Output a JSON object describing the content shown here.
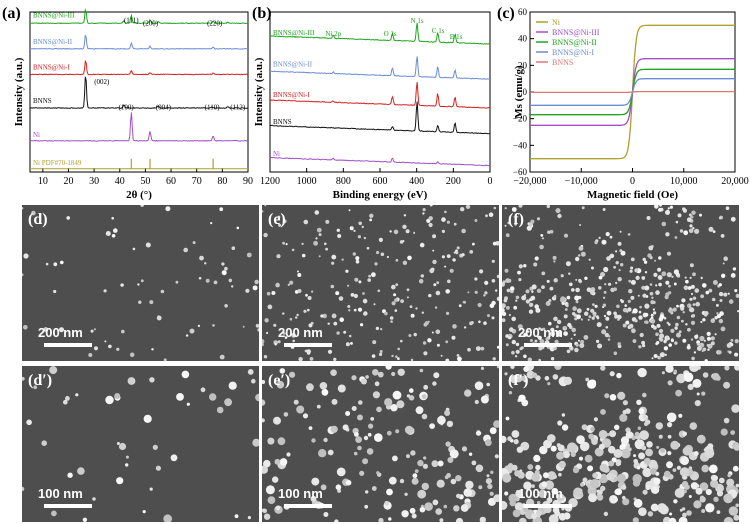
{
  "figure": {
    "panel_labels": {
      "a": "(a)",
      "b": "(b)",
      "c": "(c)",
      "d": "(d)",
      "e": "(e)",
      "f": "(f)",
      "d2": "(d′)",
      "e2": "(e′)",
      "f2": "(f′)"
    },
    "sem_scale_bars": {
      "d": "200 nm",
      "e": "200 nm",
      "f": "200 nm",
      "d2": "100 nm",
      "e2": "100 nm",
      "f2": "100 nm"
    }
  },
  "colors": {
    "green": "#1fa51f",
    "blue": "#6b8cd6",
    "red": "#d62020",
    "black": "#111111",
    "purple": "#a050c8",
    "olive": "#b0a030",
    "pink": "#e07878"
  },
  "chart_data": [
    {
      "id": "xrd",
      "type": "line",
      "title": "",
      "xlabel": "2θ (°)",
      "ylabel": "Intensity (a.u.)",
      "xlim": [
        5,
        90
      ],
      "xticks": [
        "10",
        "20",
        "30",
        "40",
        "50",
        "60",
        "70",
        "80",
        "90"
      ],
      "series": [
        {
          "name": "BNNS@Ni-III",
          "color": "#1fa51f",
          "baseline": 0.93,
          "peaks": [
            [
              26.7,
              0.09
            ],
            [
              41.6,
              0.015
            ],
            [
              44.5,
              0.05
            ],
            [
              51.8,
              0.02
            ],
            [
              55.0,
              0.008
            ],
            [
              76.4,
              0.012
            ],
            [
              82.1,
              0.006
            ]
          ]
        },
        {
          "name": "BNNS@Ni-II",
          "color": "#6b8cd6",
          "baseline": 0.77,
          "peaks": [
            [
              26.7,
              0.09
            ],
            [
              44.5,
              0.035
            ],
            [
              51.8,
              0.015
            ],
            [
              76.4,
              0.01
            ]
          ]
        },
        {
          "name": "BNNS@Ni-I",
          "color": "#d62020",
          "baseline": 0.61,
          "peaks": [
            [
              26.7,
              0.09
            ],
            [
              44.5,
              0.025
            ],
            [
              51.8,
              0.012
            ],
            [
              76.4,
              0.008
            ]
          ]
        },
        {
          "name": "BNNS",
          "color": "#111111",
          "baseline": 0.4,
          "peaks": [
            [
              26.7,
              0.21
            ],
            [
              41.6,
              0.02
            ],
            [
              55.0,
              0.012
            ],
            [
              75.9,
              0.006
            ],
            [
              82.1,
              0.008
            ]
          ]
        },
        {
          "name": "Ni",
          "color": "#a050c8",
          "baseline": 0.195,
          "peaks": [
            [
              44.5,
              0.18
            ],
            [
              51.8,
              0.06
            ],
            [
              76.4,
              0.03
            ]
          ]
        }
      ],
      "reference_name": "Ni PDF#70-1849",
      "reference_color": "#b0a030",
      "reference_peaks": [
        44.5,
        51.8,
        76.4
      ],
      "annotations": [
        {
          "text": "(111)",
          "x": 44.5,
          "y": 0.985
        },
        {
          "text": "(200)",
          "x": 52.0,
          "y": 0.965
        },
        {
          "text": "(220)",
          "x": 77.0,
          "y": 0.965
        },
        {
          "text": "(002)",
          "x": 33.0,
          "y": 0.6
        },
        {
          "text": "(100)",
          "x": 42.5,
          "y": 0.44
        },
        {
          "text": "(004)",
          "x": 57.0,
          "y": 0.44
        },
        {
          "text": "(110)",
          "x": 76.0,
          "y": 0.44
        },
        {
          "text": "(112)",
          "x": 86.0,
          "y": 0.44
        }
      ]
    },
    {
      "id": "xps",
      "type": "line",
      "title": "",
      "xlabel": "Binding energy (eV)",
      "ylabel": "Intensity (a.u.)",
      "xlim": [
        1200,
        0
      ],
      "xticks": [
        "1200",
        "1000",
        "800",
        "600",
        "400",
        "200",
        "0"
      ],
      "series": [
        {
          "name": "BNNS@Ni-III",
          "color": "#1fa51f",
          "baseline": 0.8,
          "peaks": [
            [
              855,
              0.02
            ],
            [
              532,
              0.045
            ],
            [
              398,
              0.12
            ],
            [
              285,
              0.06
            ],
            [
              191,
              0.055
            ]
          ]
        },
        {
          "name": "BNNS@Ni-II",
          "color": "#6b8cd6",
          "baseline": 0.58,
          "peaks": [
            [
              855,
              0.01
            ],
            [
              532,
              0.05
            ],
            [
              398,
              0.13
            ],
            [
              285,
              0.07
            ],
            [
              191,
              0.05
            ]
          ]
        },
        {
          "name": "BNNS@Ni-I",
          "color": "#d62020",
          "baseline": 0.4,
          "peaks": [
            [
              855,
              0.008
            ],
            [
              532,
              0.05
            ],
            [
              398,
              0.15
            ],
            [
              285,
              0.08
            ],
            [
              191,
              0.06
            ]
          ]
        },
        {
          "name": "BNNS",
          "color": "#111111",
          "baseline": 0.24,
          "peaks": [
            [
              532,
              0.02
            ],
            [
              398,
              0.19
            ],
            [
              285,
              0.04
            ],
            [
              191,
              0.06
            ]
          ]
        },
        {
          "name": "Ni",
          "color": "#a050c8",
          "baseline": 0.04,
          "peaks": [
            [
              855,
              0.012
            ],
            [
              532,
              0.025
            ],
            [
              285,
              0.012
            ]
          ]
        }
      ],
      "annotations": [
        {
          "text": "Ni 2p",
          "x": 855,
          "y": 0.9
        },
        {
          "text": "O 1s",
          "x": 545,
          "y": 0.9
        },
        {
          "text": "N 1s",
          "x": 398,
          "y": 0.98
        },
        {
          "text": "C 1s",
          "x": 283,
          "y": 0.92
        },
        {
          "text": "B 1s",
          "x": 185,
          "y": 0.88
        }
      ]
    },
    {
      "id": "vsm",
      "type": "line",
      "title": "",
      "xlabel": "Magnetic field (Oe)",
      "ylabel": "Ms (emu/g)",
      "xlim": [
        -20000,
        20000
      ],
      "ylim": [
        -60,
        60
      ],
      "xticks": [
        "−20,000",
        "−10,000",
        "0",
        "10,000",
        "20,000"
      ],
      "yticks": [
        "−60",
        "−40",
        "−20",
        "0",
        "20",
        "40",
        "60"
      ],
      "legend": "top-left",
      "series": [
        {
          "name": "Ni",
          "color": "#b0a030",
          "ms": 50
        },
        {
          "name": "BNNS@Ni-III",
          "color": "#a050c8",
          "ms": 25
        },
        {
          "name": "BNNS@Ni-II",
          "color": "#1fa51f",
          "ms": 17
        },
        {
          "name": "BNNS@Ni-I",
          "color": "#6b8cd6",
          "ms": 10
        },
        {
          "name": "BNNS",
          "color": "#e07878",
          "ms": 0.3
        }
      ]
    }
  ]
}
